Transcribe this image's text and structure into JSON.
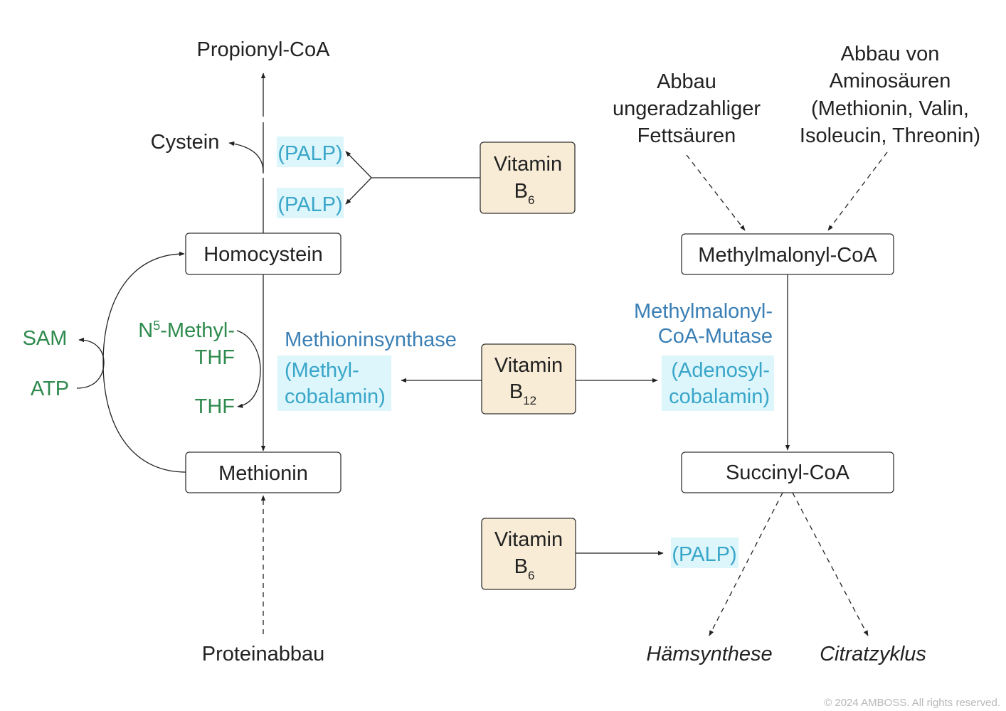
{
  "nodes": {
    "propionyl_coa": "Propionyl-CoA",
    "cystein": "Cystein",
    "homocystein": "Homocystein",
    "methionin": "Methionin",
    "proteinabbau": "Proteinabbau",
    "methylmalonyl_coa": "Methylmalonyl-CoA",
    "succinyl_coa": "Succinyl-CoA",
    "haemsynthese": "Hämsynthese",
    "citratzyklus": "Citratzyklus"
  },
  "sources": {
    "fettsaeuren": [
      "Abbau",
      "ungeradzahliger",
      "Fettsäuren"
    ],
    "aminosaeuren": [
      "Abbau von",
      "Aminosäuren",
      "(Methionin, Valin,",
      "Isoleucin, Threonin)"
    ]
  },
  "vitamins": {
    "b6_top": {
      "name": "Vitamin",
      "letter": "B",
      "sub": "6"
    },
    "b12": {
      "name": "Vitamin",
      "letter": "B",
      "sub": "12"
    },
    "b6_bottom": {
      "name": "Vitamin",
      "letter": "B",
      "sub": "6"
    }
  },
  "cofactors": {
    "palp_top": "(PALP)",
    "palp_mid": "(PALP)",
    "palp_bottom": "(PALP)",
    "methylcobalamin": [
      "(Methyl-",
      "cobalamin)"
    ],
    "adenosylcobalamin": [
      "(Adenosyl-",
      "cobalamin)"
    ]
  },
  "enzymes": {
    "methioninsynthase": "Methioninsynthase",
    "methylmalonyl_mutase": [
      "Methylmalonyl-",
      "CoA-Mutase"
    ]
  },
  "cycle_labels": {
    "sam": "SAM",
    "atp": "ATP",
    "n5_prefix": "N",
    "n5_sup": "5",
    "n5_suffix": "-Methyl-",
    "thf_line2": "THF",
    "thf": "THF"
  },
  "copyright": "© 2024 AMBOSS. All rights reserved.",
  "colors": {
    "vitamin_box": "#f8ecd6",
    "cofactor_highlight": "#dcf6fb",
    "cofactor_text": "#3aa6c9",
    "enzyme_text": "#3a7fb5",
    "cycle_text": "#2f8a4e"
  }
}
